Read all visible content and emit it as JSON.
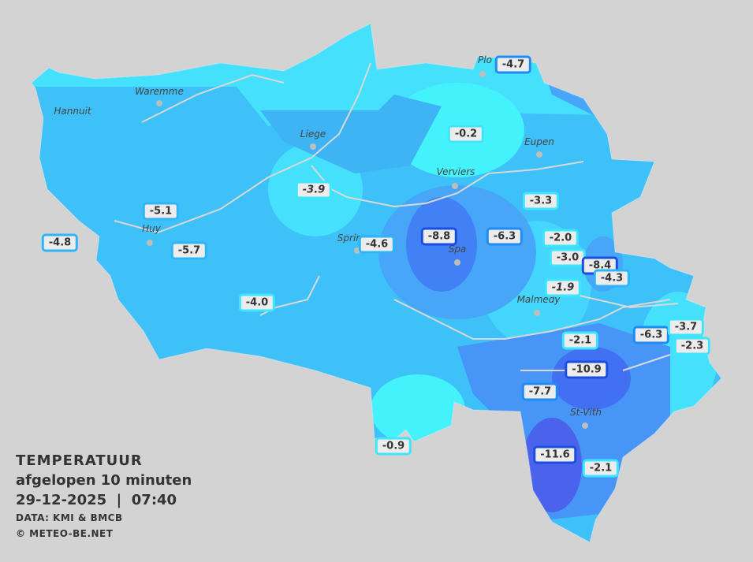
{
  "legend": {
    "title": "TEMPERATUUR",
    "subtitle": "afgelopen 10 minuten",
    "datetime": "29-12-2025  |  07:40",
    "source": "DATA: KMI & BMCB",
    "copyright": "© METEO-BE.NET"
  },
  "colors": {
    "background": "#d3d3d3",
    "light_cyan": "#44e0fc",
    "base_blue": "#3ec0f8",
    "mid_blue": "#47a6f8",
    "dark_blue": "#4280f5",
    "darkest_blue": "#4a62ec"
  },
  "cities": [
    {
      "name": "Hannuit"
    },
    {
      "name": "Waremme"
    },
    {
      "name": "Liege"
    },
    {
      "name": "Huy"
    },
    {
      "name": "Eupen"
    },
    {
      "name": "Verviers"
    },
    {
      "name": "Spa"
    },
    {
      "name": "Malmedy"
    },
    {
      "name": "St-Vith"
    },
    {
      "name": "Sprir"
    },
    {
      "name": "Plo"
    }
  ],
  "stations": [
    {
      "value": "-4.7",
      "tier": "mid"
    },
    {
      "value": "-0.2",
      "tier": "light"
    },
    {
      "value": "-3.9",
      "tier": "light"
    },
    {
      "value": "-3.3",
      "tier": "light"
    },
    {
      "value": "-5.1",
      "tier": "base"
    },
    {
      "value": "-4.8",
      "tier": "base"
    },
    {
      "value": "-5.7",
      "tier": "base"
    },
    {
      "value": "-4.6",
      "tier": "base"
    },
    {
      "value": "-8.8",
      "tier": "dark"
    },
    {
      "value": "-6.3",
      "tier": "mid"
    },
    {
      "value": "-2.0",
      "tier": "light"
    },
    {
      "value": "-3.0",
      "tier": "light"
    },
    {
      "value": "-8.4",
      "tier": "dark"
    },
    {
      "value": "-4.3",
      "tier": "base"
    },
    {
      "value": "-1.9",
      "tier": "light"
    },
    {
      "value": "-4.0",
      "tier": "light"
    },
    {
      "value": "-2.1",
      "tier": "light"
    },
    {
      "value": "-6.3",
      "tier": "mid"
    },
    {
      "value": "-3.7",
      "tier": "light"
    },
    {
      "value": "-2.3",
      "tier": "light"
    },
    {
      "value": "-10.9",
      "tier": "dark"
    },
    {
      "value": "-7.7",
      "tier": "mid"
    },
    {
      "value": "-0.9",
      "tier": "light"
    },
    {
      "value": "-11.6",
      "tier": "dark"
    },
    {
      "value": "-2.1",
      "tier": "light"
    }
  ]
}
